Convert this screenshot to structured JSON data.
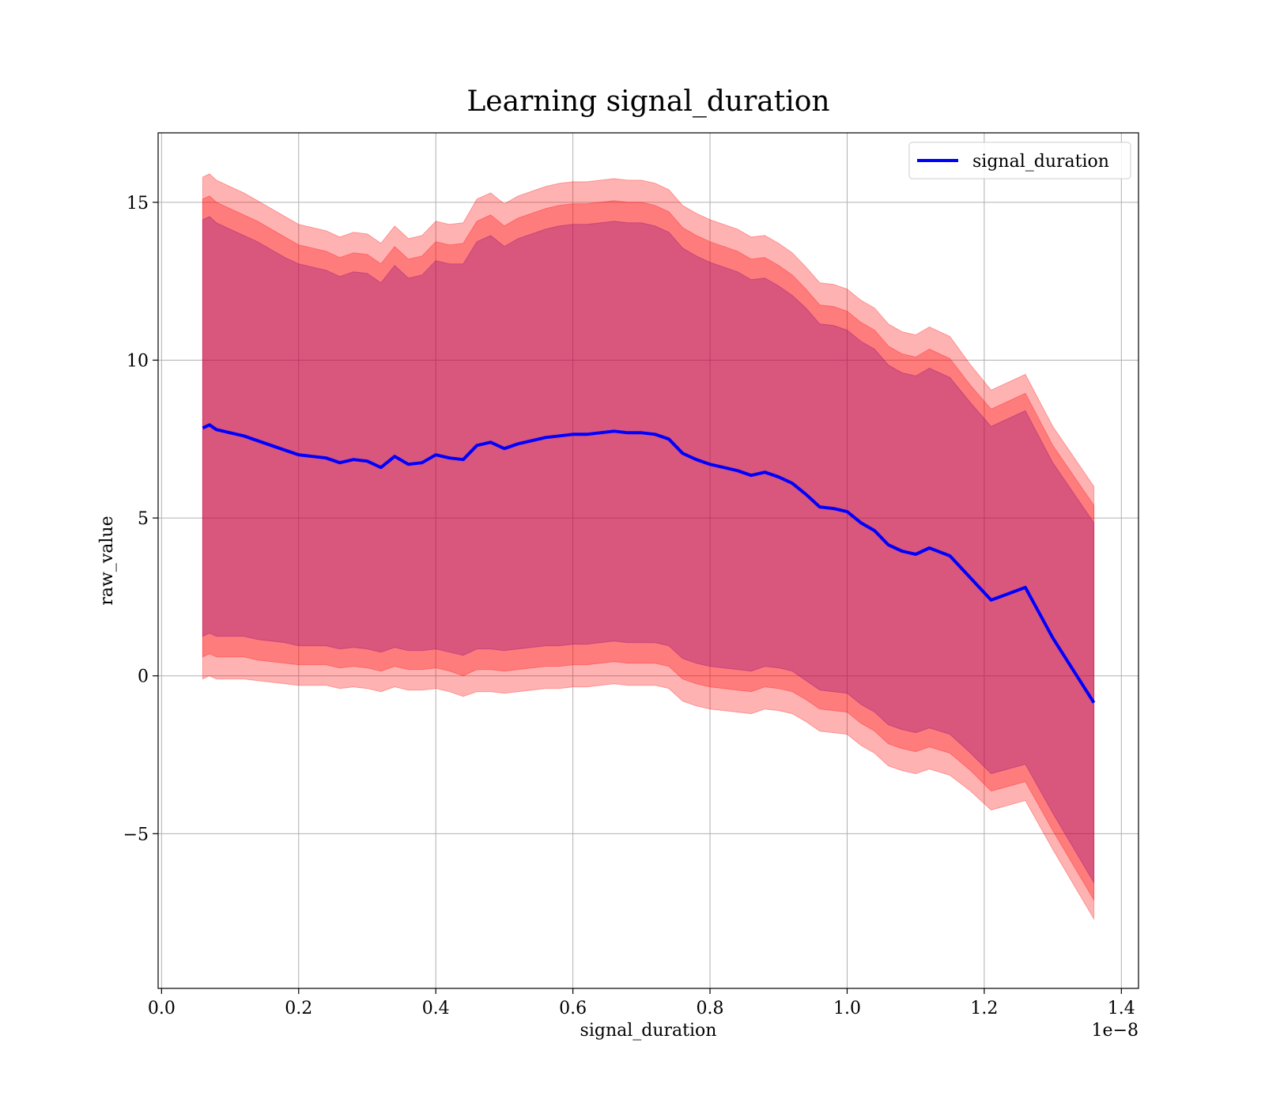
{
  "chart_data": {
    "type": "line",
    "title": "Learning signal_duration",
    "xlabel": "signal_duration",
    "ylabel": "raw_value",
    "x_offset_text": "1e−8",
    "xlim": [
      -0.005,
      1.425
    ],
    "ylim": [
      -9.9,
      17.2
    ],
    "x_ticks": [
      0.0,
      0.2,
      0.4,
      0.6,
      0.8,
      1.0,
      1.2,
      1.4
    ],
    "x_tick_labels": [
      "0.0",
      "0.2",
      "0.4",
      "0.6",
      "0.8",
      "1.0",
      "1.2",
      "1.4"
    ],
    "y_ticks": [
      -5,
      0,
      5,
      10,
      15
    ],
    "y_tick_labels": [
      "−5",
      "0",
      "5",
      "10",
      "15"
    ],
    "grid": true,
    "legend_position": "top-right",
    "band_colors": {
      "outer": "#ff0000",
      "middle": "#ff0000",
      "inner": "#800080"
    },
    "band_opacity": {
      "outer": 0.3,
      "middle": 0.3,
      "inner": 0.3
    },
    "series": [
      {
        "name": "signal_duration",
        "color": "#0000ff",
        "x": [
          0.06,
          0.07,
          0.08,
          0.09,
          0.1,
          0.12,
          0.14,
          0.16,
          0.18,
          0.2,
          0.22,
          0.24,
          0.26,
          0.28,
          0.3,
          0.32,
          0.34,
          0.36,
          0.38,
          0.4,
          0.42,
          0.44,
          0.46,
          0.48,
          0.5,
          0.52,
          0.54,
          0.56,
          0.58,
          0.6,
          0.62,
          0.64,
          0.66,
          0.68,
          0.7,
          0.72,
          0.74,
          0.76,
          0.78,
          0.8,
          0.82,
          0.84,
          0.86,
          0.88,
          0.9,
          0.92,
          0.94,
          0.96,
          0.98,
          1.0,
          1.02,
          1.04,
          1.06,
          1.08,
          1.1,
          1.12,
          1.15,
          1.18,
          1.21,
          1.26,
          1.3,
          1.36
        ],
        "y": [
          7.85,
          7.95,
          7.8,
          7.75,
          7.7,
          7.6,
          7.45,
          7.3,
          7.15,
          7.0,
          6.95,
          6.9,
          6.75,
          6.85,
          6.8,
          6.6,
          6.95,
          6.7,
          6.75,
          7.0,
          6.9,
          6.85,
          7.3,
          7.4,
          7.2,
          7.35,
          7.45,
          7.55,
          7.6,
          7.65,
          7.65,
          7.7,
          7.75,
          7.7,
          7.7,
          7.65,
          7.5,
          7.05,
          6.85,
          6.7,
          6.6,
          6.5,
          6.35,
          6.45,
          6.3,
          6.1,
          5.75,
          5.35,
          5.3,
          5.2,
          4.85,
          4.6,
          4.15,
          3.95,
          3.85,
          4.05,
          3.8,
          3.1,
          2.4,
          2.8,
          1.2,
          -0.85
        ],
        "band_outer": [
          7.95,
          7.95,
          7.9,
          7.85,
          7.8,
          7.7,
          7.6,
          7.5,
          7.4,
          7.3,
          7.25,
          7.2,
          7.15,
          7.2,
          7.2,
          7.1,
          7.3,
          7.15,
          7.2,
          7.4,
          7.4,
          7.5,
          7.8,
          7.9,
          7.75,
          7.85,
          7.9,
          7.95,
          8.0,
          8.0,
          8.0,
          8.0,
          8.0,
          8.0,
          8.0,
          7.95,
          7.9,
          7.85,
          7.8,
          7.75,
          7.7,
          7.65,
          7.55,
          7.5,
          7.4,
          7.3,
          7.2,
          7.1,
          7.1,
          7.05,
          7.05,
          7.05,
          7.0,
          6.95,
          6.95,
          7.0,
          6.95,
          6.75,
          6.65,
          6.75,
          6.7,
          6.85
        ],
        "band_middle": [
          7.25,
          7.25,
          7.2,
          7.15,
          7.1,
          7.0,
          6.95,
          6.85,
          6.75,
          6.65,
          6.6,
          6.55,
          6.5,
          6.55,
          6.55,
          6.45,
          6.65,
          6.5,
          6.55,
          6.75,
          6.75,
          6.85,
          7.1,
          7.2,
          7.05,
          7.15,
          7.2,
          7.25,
          7.3,
          7.3,
          7.3,
          7.3,
          7.3,
          7.3,
          7.3,
          7.25,
          7.2,
          7.15,
          7.1,
          7.05,
          7.0,
          6.95,
          6.85,
          6.8,
          6.7,
          6.6,
          6.5,
          6.4,
          6.4,
          6.35,
          6.35,
          6.35,
          6.3,
          6.25,
          6.25,
          6.3,
          6.25,
          6.1,
          6.05,
          6.15,
          6.1,
          6.25
        ],
        "band_inner": [
          6.6,
          6.6,
          6.55,
          6.5,
          6.45,
          6.35,
          6.3,
          6.2,
          6.1,
          6.05,
          6.0,
          5.95,
          5.9,
          5.95,
          5.95,
          5.85,
          6.05,
          5.9,
          5.95,
          6.15,
          6.15,
          6.2,
          6.45,
          6.55,
          6.4,
          6.5,
          6.55,
          6.6,
          6.65,
          6.65,
          6.65,
          6.65,
          6.65,
          6.65,
          6.65,
          6.6,
          6.55,
          6.5,
          6.45,
          6.4,
          6.35,
          6.3,
          6.2,
          6.15,
          6.05,
          5.95,
          5.9,
          5.8,
          5.8,
          5.75,
          5.75,
          5.75,
          5.7,
          5.65,
          5.65,
          5.7,
          5.65,
          5.55,
          5.5,
          5.6,
          5.55,
          5.7
        ]
      }
    ]
  }
}
